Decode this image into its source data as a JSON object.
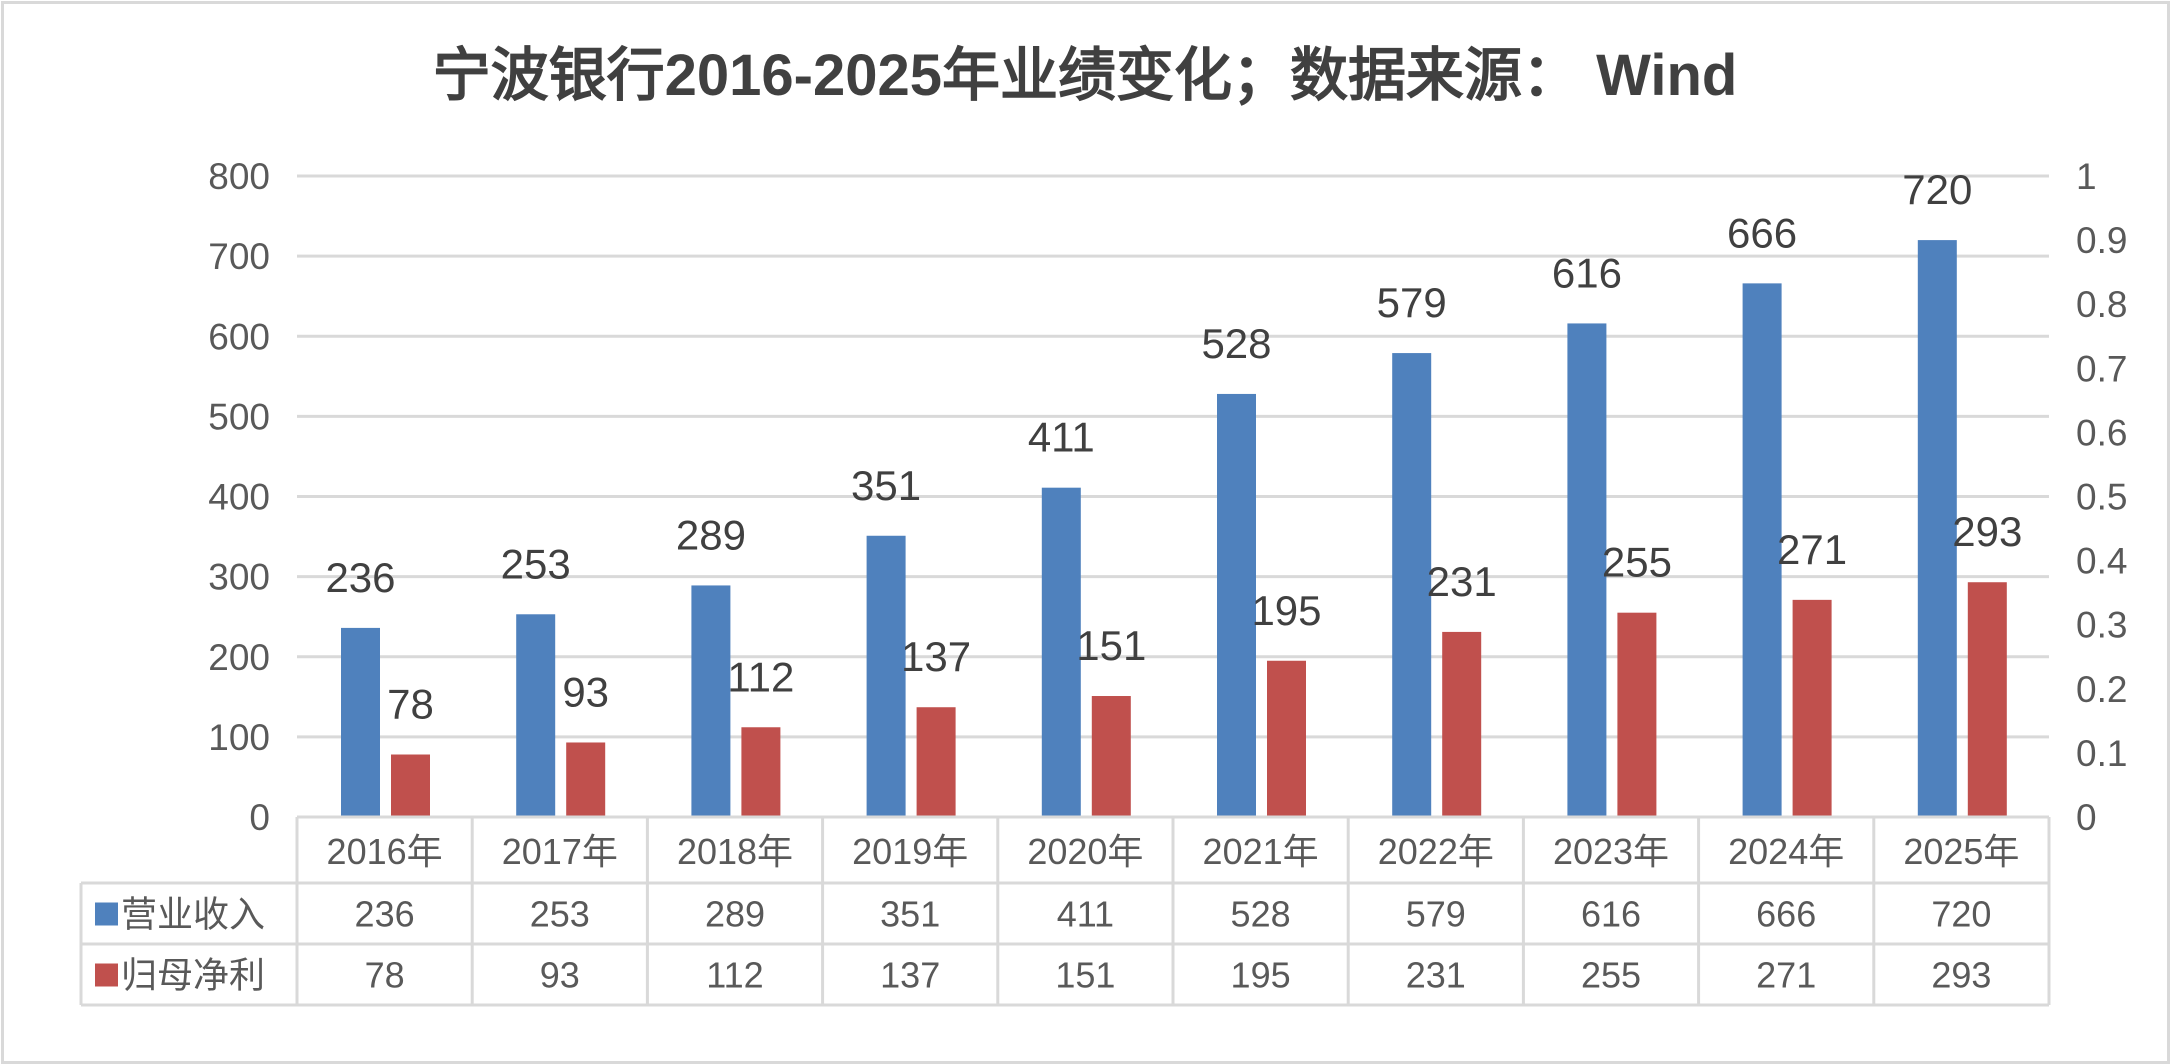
{
  "chart_data": {
    "type": "bar",
    "title": "宁波银行2016-2025年业绩变化；数据来源： Wind",
    "categories": [
      "2016年",
      "2017年",
      "2018年",
      "2019年",
      "2020年",
      "2021年",
      "2022年",
      "2023年",
      "2024年",
      "2025年"
    ],
    "series": [
      {
        "name": "营业收入",
        "color": "#4f81bd",
        "values": [
          236,
          253,
          289,
          351,
          411,
          528,
          579,
          616,
          666,
          720
        ]
      },
      {
        "name": "归母净利",
        "color": "#c0504d",
        "values": [
          78,
          93,
          112,
          137,
          151,
          195,
          231,
          255,
          271,
          293
        ]
      }
    ],
    "ylim": [
      0,
      800
    ],
    "yticks": [
      "0",
      "100",
      "200",
      "300",
      "400",
      "500",
      "600",
      "700",
      "800"
    ],
    "y2lim": [
      0,
      1
    ],
    "y2ticks": [
      "0",
      "0.1",
      "0.2",
      "0.3",
      "0.4",
      "0.5",
      "0.6",
      "0.7",
      "0.8",
      "0.9",
      "1"
    ],
    "grid": true,
    "legend": "data-table-left",
    "data_table": true
  }
}
